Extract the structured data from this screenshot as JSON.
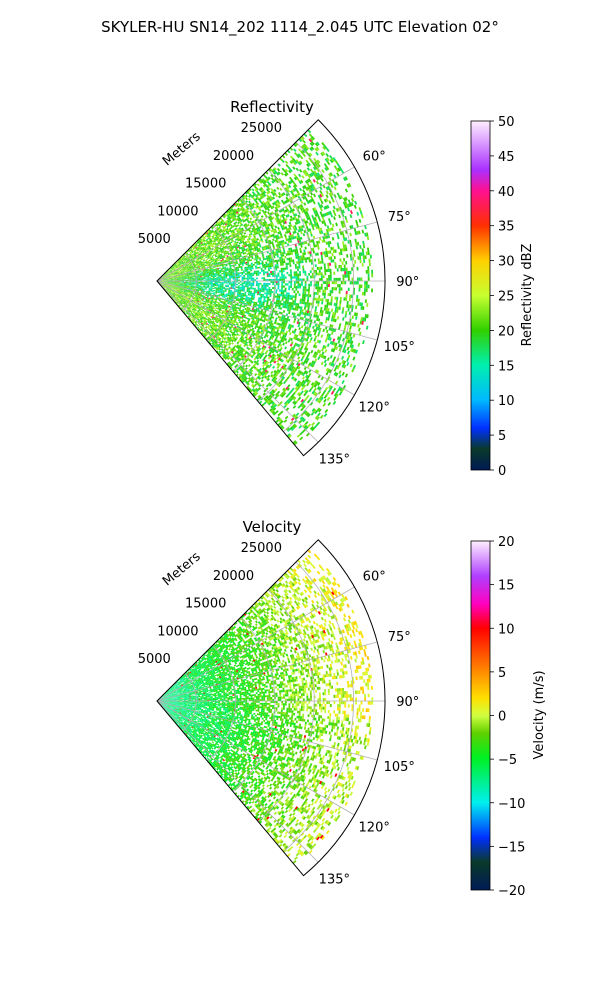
{
  "figure": {
    "title": "SKYLER-HU  SN14_202  1114_2.045 UTC Elevation 02°"
  },
  "chart_data": [
    {
      "type": "heatmap",
      "subtype": "polar-sector",
      "title": "Reflectivity",
      "radial_axis_label": "Meters",
      "r_ticks": [
        5000,
        10000,
        15000,
        20000,
        25000
      ],
      "r_tick_labels": [
        "5000",
        "10000",
        "15000",
        "20000",
        "25000"
      ],
      "rlim": [
        0,
        29000
      ],
      "theta_ticks": [
        60,
        75,
        90,
        105,
        120,
        135
      ],
      "theta_tick_labels": [
        "60°",
        "75°",
        "90°",
        "105°",
        "120°",
        "135°"
      ],
      "theta_range_deg": [
        45,
        140
      ],
      "grid": true,
      "colorbar": {
        "label": "Reflectivity dBZ",
        "range": [
          0,
          50
        ],
        "ticks": [
          0,
          5,
          10,
          15,
          20,
          25,
          30,
          35,
          40,
          45,
          50
        ],
        "tick_labels": [
          "0",
          "5",
          "10",
          "15",
          "20",
          "25",
          "30",
          "35",
          "40",
          "45",
          "50"
        ]
      },
      "field_summary": {
        "dominant_near_range": 22,
        "dominant_mid_range_center_beams": 15,
        "dominant_far_range": 20,
        "max_spots": 38
      }
    },
    {
      "type": "heatmap",
      "subtype": "polar-sector",
      "title": "Velocity",
      "radial_axis_label": "Meters",
      "r_ticks": [
        5000,
        10000,
        15000,
        20000,
        25000
      ],
      "r_tick_labels": [
        "5000",
        "10000",
        "15000",
        "20000",
        "25000"
      ],
      "rlim": [
        0,
        29000
      ],
      "theta_ticks": [
        60,
        75,
        90,
        105,
        120,
        135
      ],
      "theta_tick_labels": [
        "60°",
        "75°",
        "90°",
        "105°",
        "120°",
        "135°"
      ],
      "theta_range_deg": [
        45,
        140
      ],
      "grid": true,
      "colorbar": {
        "label": "Velocity (m/s)",
        "range": [
          -20,
          20
        ],
        "ticks": [
          -20,
          -15,
          -10,
          -5,
          0,
          5,
          10,
          15,
          20
        ],
        "tick_labels": [
          "−20",
          "−15",
          "−10",
          "−5",
          "0",
          "5",
          "10",
          "15",
          "20"
        ]
      },
      "field_summary": {
        "dominant_near_range": -8,
        "dominant_mid_range": -4,
        "dominant_far_range": 0,
        "max_spots": 10
      }
    }
  ]
}
